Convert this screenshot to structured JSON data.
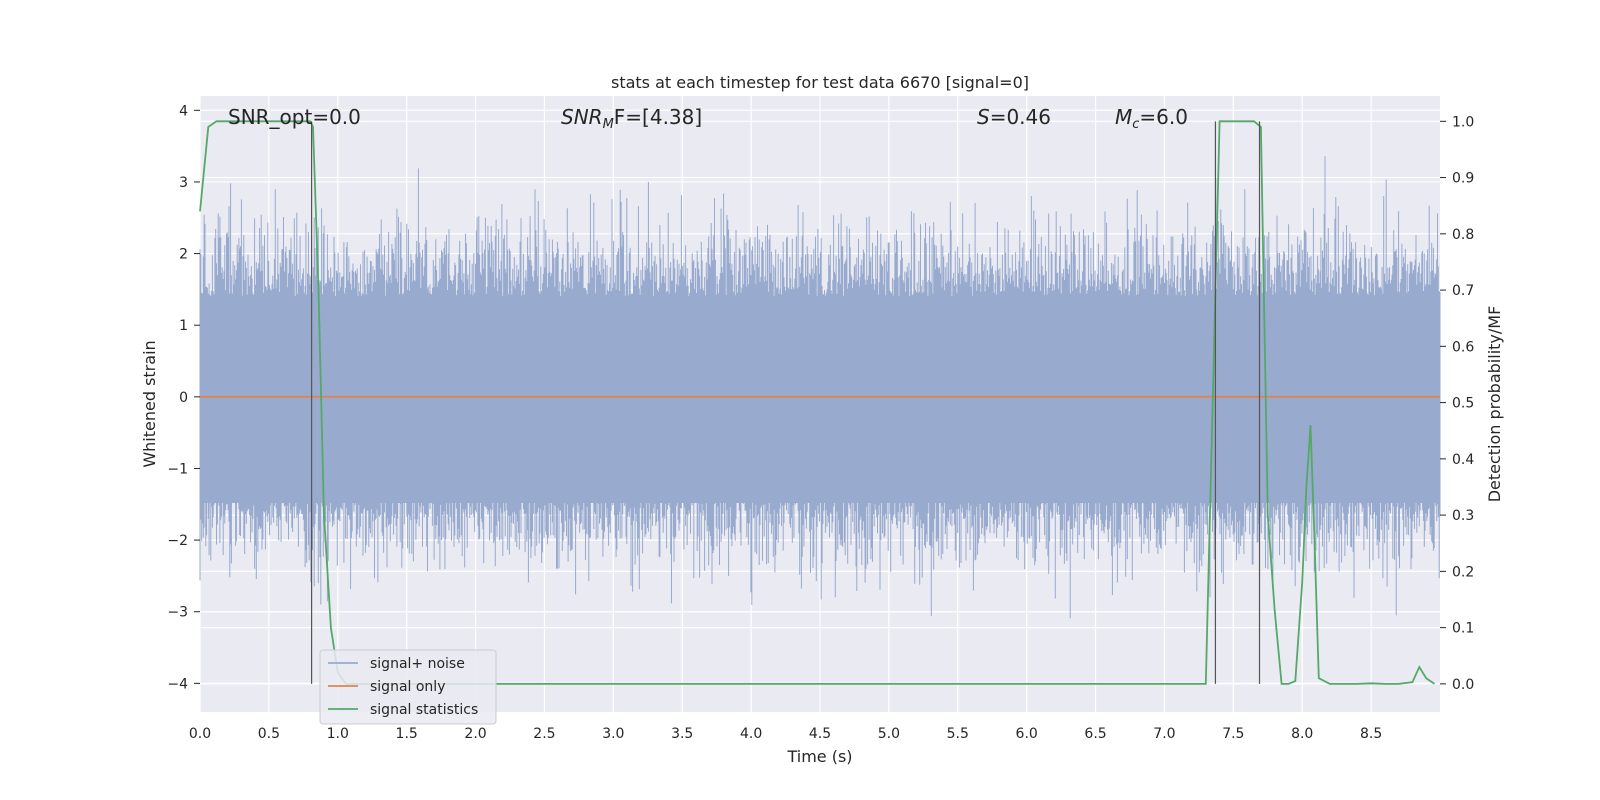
{
  "chart_data": {
    "type": "line",
    "title": "stats at each timestep for test data 6670 [signal=0]",
    "xlabel": "Time (s)",
    "ylabel": "Whitened strain",
    "y2label": "Detection probability/MF",
    "xlim": [
      0.0,
      9.0
    ],
    "ylim": [
      -4.4,
      4.2
    ],
    "y2lim": [
      -0.05,
      1.045
    ],
    "xticks": [
      "0.0",
      "0.5",
      "1.0",
      "1.5",
      "2.0",
      "2.5",
      "3.0",
      "3.5",
      "4.0",
      "4.5",
      "5.0",
      "5.5",
      "6.0",
      "6.5",
      "7.0",
      "7.5",
      "8.0",
      "8.5"
    ],
    "yticks": [
      "4",
      "3",
      "2",
      "1",
      "0",
      "−1",
      "−2",
      "−3",
      "−4"
    ],
    "y2ticks": [
      "1.0",
      "0.9",
      "0.8",
      "0.7",
      "0.6",
      "0.5",
      "0.4",
      "0.3",
      "0.2",
      "0.1",
      "0.0"
    ],
    "grid": true,
    "legend_position": "lower-left",
    "annotations": {
      "snr_opt": "SNR_opt=0.0",
      "snr_mf_base": "SNR",
      "snr_mf_sub": "M",
      "snr_mf_rest": "F=[4.38]",
      "s_label_base": "S",
      "s_label_rest": "=0.46",
      "mc_base": "M",
      "mc_sub": "c",
      "mc_rest": "=6.0"
    },
    "vlines_x": [
      0.81,
      7.37,
      7.69
    ],
    "series": [
      {
        "name": "signal+ noise",
        "color": "#98aace",
        "axis": "left",
        "kind": "noise",
        "envelope": [
          1.8,
          -1.9
        ]
      },
      {
        "name": "signal only",
        "color": "#dd8452",
        "axis": "left",
        "x": [
          0.0,
          9.0
        ],
        "y": [
          0.0,
          0.0
        ]
      },
      {
        "name": "signal statistics",
        "color": "#55a868",
        "axis": "right",
        "x": [
          0.0,
          0.06,
          0.12,
          0.2,
          0.3,
          0.4,
          0.5,
          0.6,
          0.7,
          0.75,
          0.8,
          0.82,
          0.86,
          0.9,
          0.95,
          1.0,
          1.06,
          7.3,
          7.35,
          7.4,
          7.45,
          7.5,
          7.55,
          7.6,
          7.65,
          7.7,
          7.75,
          7.8,
          7.85,
          7.9,
          7.95,
          8.0,
          8.03,
          8.06,
          8.09,
          8.12,
          8.2,
          8.3,
          8.4,
          8.5,
          8.6,
          8.7,
          8.8,
          8.85,
          8.9,
          8.96
        ],
        "y": [
          0.84,
          0.99,
          1.0,
          1.0,
          1.0,
          1.0,
          1.0,
          1.0,
          1.0,
          1.0,
          1.0,
          0.99,
          0.7,
          0.3,
          0.1,
          0.02,
          0.0,
          0.0,
          0.5,
          1.0,
          1.0,
          1.0,
          1.0,
          1.0,
          1.0,
          0.99,
          0.3,
          0.13,
          0.0,
          0.0,
          0.005,
          0.18,
          0.35,
          0.46,
          0.25,
          0.01,
          0.0,
          0.0,
          0.0,
          0.001,
          0.0,
          0.0,
          0.003,
          0.03,
          0.01,
          0.0
        ]
      }
    ]
  }
}
